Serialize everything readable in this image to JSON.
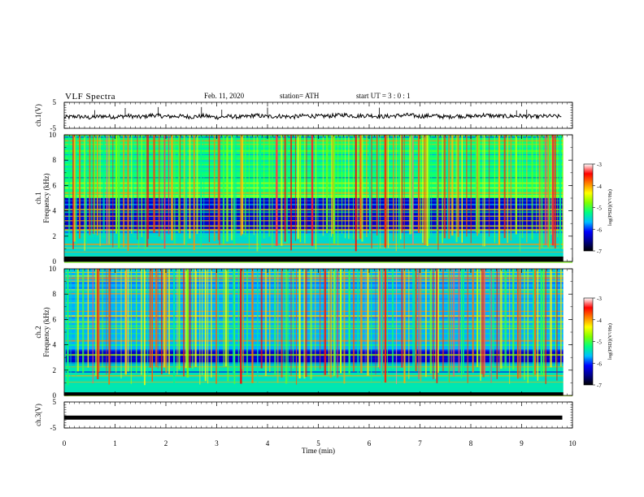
{
  "header": {
    "title": "VLF  Spectra",
    "date": "Feb. 11, 2020",
    "station": "station= ATH",
    "start_ut": "start  UT  =    3  : 0   : 1"
  },
  "chart_data": [
    {
      "type": "line",
      "ylabel": "ch.1(V)",
      "ylim": [
        -5,
        5
      ],
      "yticks": [
        "5",
        "-5"
      ],
      "description_values": "noisy waveform near -0.5 V",
      "x": [
        0,
        0.25,
        0.5,
        0.75,
        1,
        1.25,
        1.5,
        1.75,
        2,
        2.25,
        2.5,
        2.75,
        3,
        3.25,
        3.5,
        3.75,
        4,
        4.25,
        4.5,
        4.75,
        5,
        5.25,
        5.5,
        5.75,
        6,
        6.25,
        6.5,
        6.75,
        7,
        7.25,
        7.5,
        7.75,
        8,
        8.25,
        8.5,
        8.75,
        9,
        9.25,
        9.5,
        9.8
      ],
      "y": [
        -0.8,
        -0.4,
        -0.9,
        -0.3,
        -0.6,
        -0.2,
        -0.7,
        0.1,
        -0.5,
        -0.3,
        -0.6,
        -0.2,
        -0.8,
        -0.4,
        -0.7,
        0.0,
        -0.5,
        -0.3,
        -0.6,
        -0.1,
        -0.4,
        -0.2,
        0.2,
        -0.3,
        0.0,
        -0.5,
        -0.2,
        0.1,
        -0.4,
        -0.1,
        -0.6,
        -0.2,
        -0.5,
        0.1,
        -0.3,
        -0.4,
        -0.2,
        -0.6,
        -0.3,
        -0.5
      ]
    },
    {
      "type": "heatmap",
      "title_label": "ch.1",
      "ylabel": "Frequency  (kHz)",
      "ylim": [
        0,
        10
      ],
      "yticks": [
        "0",
        "2",
        "4",
        "6",
        "8",
        "10"
      ],
      "colorbar": {
        "label": "log(PSD)(V²/Hz)",
        "range": [
          -7,
          -3
        ],
        "ticks": [
          "-3",
          "-4",
          "-5",
          "-6",
          "-7"
        ]
      },
      "bands_khz": [
        {
          "from": 0,
          "to": 0.4,
          "level": -7
        },
        {
          "from": 0.4,
          "to": 2.5,
          "level": -5.5
        },
        {
          "from": 2.5,
          "to": 5,
          "level": -6.3
        },
        {
          "from": 5,
          "to": 10,
          "level": -5.2
        }
      ]
    },
    {
      "type": "heatmap",
      "title_label": "ch.2",
      "ylabel": "Frequency  (kHz)",
      "ylim": [
        0,
        10
      ],
      "yticks": [
        "0",
        "2",
        "4",
        "6",
        "8",
        "10"
      ],
      "colorbar": {
        "label": "log(PSD)(V²/Hz)",
        "range": [
          -7,
          -3
        ],
        "ticks": [
          "-3",
          "-4",
          "-5",
          "-6",
          "-7"
        ]
      },
      "bands_khz": [
        {
          "from": 0,
          "to": 2.5,
          "level": -5.4
        },
        {
          "from": 2.5,
          "to": 3.5,
          "level": -6.3
        },
        {
          "from": 3.5,
          "to": 10,
          "level": -5.7
        }
      ]
    },
    {
      "type": "line",
      "ylabel": "ch.3(V)",
      "ylim": [
        -5,
        5
      ],
      "yticks": [
        "5",
        "-5"
      ],
      "x": [
        0,
        9.8
      ],
      "y": [
        -1,
        -1
      ]
    }
  ],
  "xaxis": {
    "label": "Time  (min)",
    "range": [
      0,
      10
    ],
    "ticks": [
      "0",
      "1",
      "2",
      "3",
      "4",
      "5",
      "6",
      "7",
      "8",
      "9",
      "10"
    ]
  },
  "colors": {
    "ramp": [
      "#000000",
      "#00008b",
      "#0000ff",
      "#00bfff",
      "#00ff80",
      "#80ff00",
      "#ffff00",
      "#ff8000",
      "#ff0000",
      "#ffffff"
    ]
  }
}
